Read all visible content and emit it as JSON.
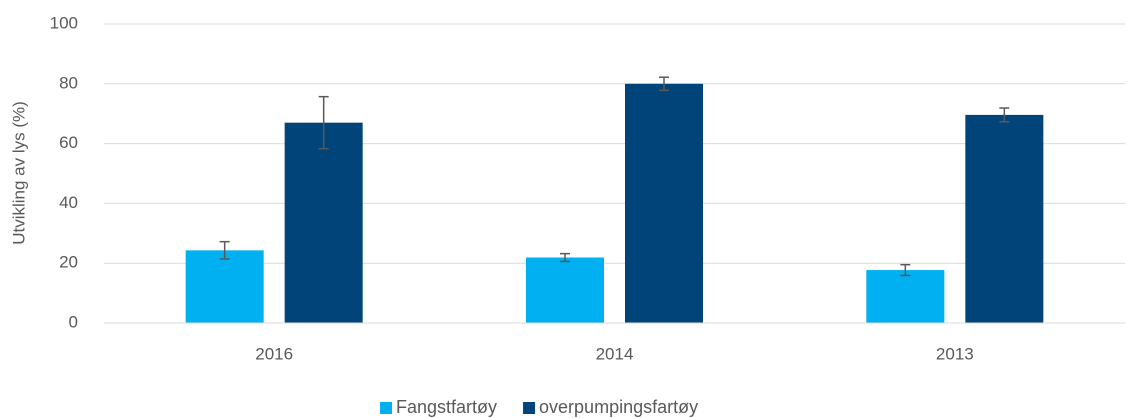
{
  "chart_data": {
    "type": "bar",
    "y_label": "Utvikling av lys (%)",
    "categories": [
      "2016",
      "2014",
      "2013"
    ],
    "series": [
      {
        "name": "Fangstfartøy",
        "color": "#00b0f0",
        "values": [
          24.3,
          21.9,
          17.7
        ],
        "errors": [
          2.9,
          1.3,
          1.8
        ]
      },
      {
        "name": "overpumpingsfartøy",
        "color": "#004479",
        "values": [
          67,
          80,
          69.6
        ],
        "errors": [
          8.7,
          2.2,
          2.3
        ]
      }
    ],
    "ylim": [
      0,
      100
    ],
    "yticks": [
      0,
      20,
      40,
      60,
      80,
      100
    ],
    "grid": true,
    "legend": "bottom"
  }
}
